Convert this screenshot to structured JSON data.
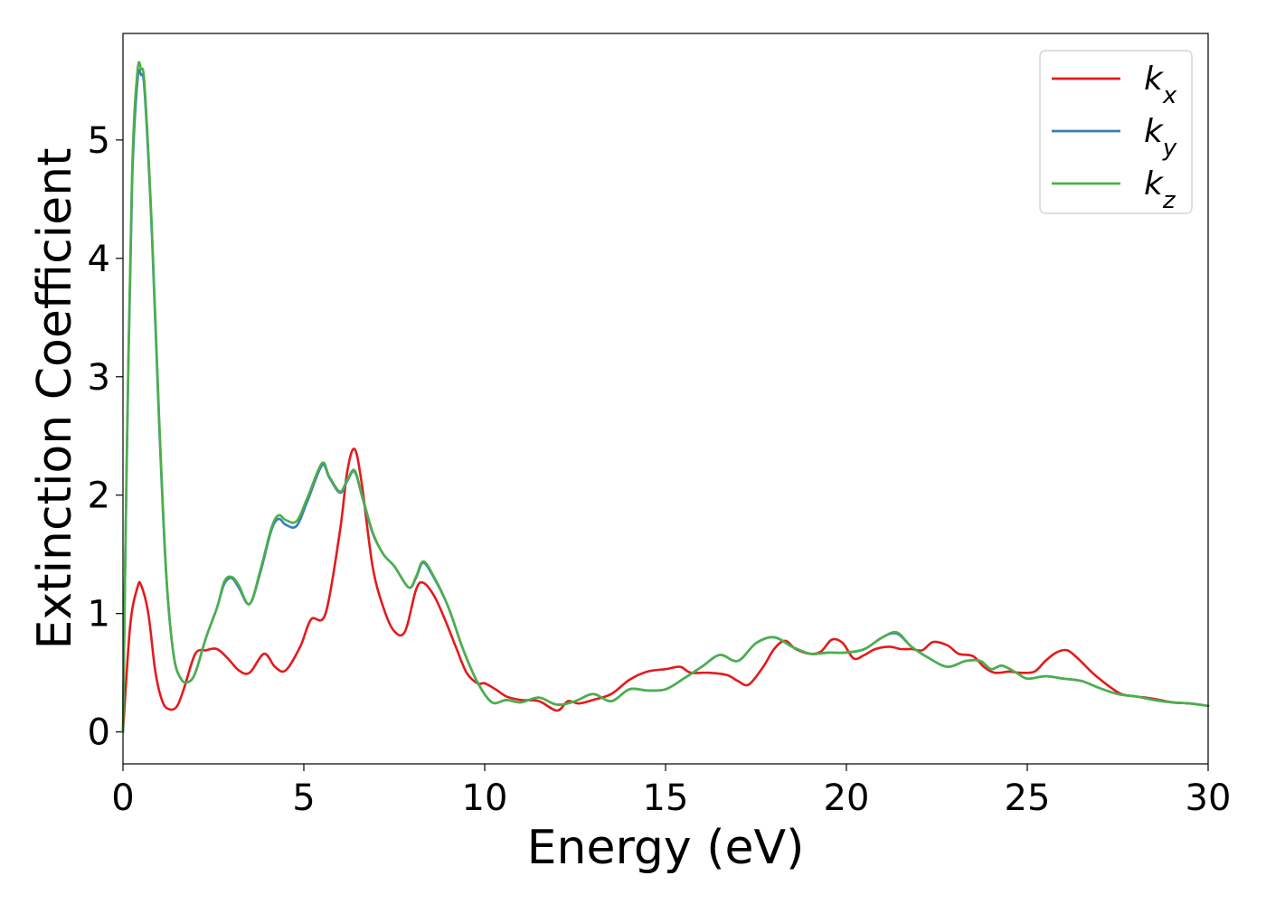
{
  "chart_data": {
    "type": "line",
    "xlabel": "Energy (eV)",
    "ylabel": "Extinction Coefficient",
    "xlim": [
      0,
      30
    ],
    "ylim": [
      -0.27,
      5.9
    ],
    "x_ticks": [
      0,
      5,
      10,
      15,
      20,
      25,
      30
    ],
    "y_ticks": [
      0,
      1,
      2,
      3,
      4,
      5
    ],
    "grid": false,
    "legend_position": "top-right",
    "series": [
      {
        "name": "k",
        "subscript": "x",
        "color": "#e41a1c",
        "x": [
          0,
          0.2,
          0.4,
          0.5,
          0.7,
          0.9,
          1.1,
          1.3,
          1.5,
          1.7,
          2.0,
          2.3,
          2.6,
          2.9,
          3.2,
          3.5,
          3.9,
          4.2,
          4.5,
          4.9,
          5.2,
          5.6,
          6.0,
          6.2,
          6.4,
          6.6,
          6.9,
          7.2,
          7.5,
          7.8,
          8.1,
          8.3,
          8.6,
          8.9,
          9.2,
          9.5,
          9.8,
          10.0,
          10.3,
          10.6,
          11.0,
          11.5,
          12.0,
          12.3,
          12.6,
          13.0,
          13.5,
          14.0,
          14.5,
          15.0,
          15.4,
          15.7,
          16.2,
          16.7,
          17.0,
          17.3,
          17.7,
          18.0,
          18.3,
          18.6,
          19.0,
          19.3,
          19.6,
          19.9,
          20.2,
          20.5,
          20.8,
          21.2,
          21.5,
          21.8,
          22.1,
          22.4,
          22.8,
          23.1,
          23.5,
          23.8,
          24.1,
          24.5,
          24.8,
          25.2,
          25.5,
          25.8,
          26.1,
          26.4,
          26.8,
          27.2,
          27.6,
          28.0,
          28.5,
          29.0,
          29.5,
          30.0
        ],
        "y": [
          0.0,
          0.9,
          1.22,
          1.24,
          1.0,
          0.5,
          0.25,
          0.19,
          0.22,
          0.38,
          0.66,
          0.69,
          0.7,
          0.62,
          0.52,
          0.5,
          0.66,
          0.55,
          0.52,
          0.72,
          0.95,
          1.0,
          1.7,
          2.2,
          2.39,
          2.1,
          1.4,
          1.05,
          0.85,
          0.85,
          1.2,
          1.26,
          1.15,
          0.95,
          0.72,
          0.5,
          0.41,
          0.41,
          0.36,
          0.3,
          0.27,
          0.26,
          0.18,
          0.26,
          0.24,
          0.27,
          0.32,
          0.44,
          0.51,
          0.53,
          0.55,
          0.5,
          0.5,
          0.48,
          0.43,
          0.4,
          0.55,
          0.7,
          0.77,
          0.7,
          0.66,
          0.68,
          0.78,
          0.75,
          0.62,
          0.65,
          0.7,
          0.72,
          0.7,
          0.7,
          0.69,
          0.76,
          0.73,
          0.66,
          0.64,
          0.55,
          0.5,
          0.51,
          0.5,
          0.51,
          0.6,
          0.67,
          0.69,
          0.62,
          0.5,
          0.4,
          0.32,
          0.3,
          0.28,
          0.25,
          0.24,
          0.22
        ]
      },
      {
        "name": "k",
        "subscript": "y",
        "color": "#377eb8",
        "x": [
          0,
          0.1,
          0.25,
          0.4,
          0.5,
          0.6,
          0.8,
          1.0,
          1.2,
          1.4,
          1.6,
          1.8,
          2.0,
          2.3,
          2.6,
          2.8,
          3.0,
          3.2,
          3.5,
          3.8,
          4.1,
          4.3,
          4.5,
          4.8,
          5.1,
          5.5,
          5.7,
          6.0,
          6.2,
          6.4,
          6.6,
          6.9,
          7.2,
          7.5,
          7.9,
          8.1,
          8.3,
          8.6,
          9.0,
          9.4,
          9.8,
          10.2,
          10.6,
          11.0,
          11.5,
          12.0,
          12.5,
          13.0,
          13.5,
          14.0,
          14.5,
          15.0,
          15.5,
          16.0,
          16.5,
          17.0,
          17.5,
          18.0,
          18.5,
          19.0,
          19.5,
          20.0,
          20.5,
          21.0,
          21.4,
          21.8,
          22.3,
          22.8,
          23.3,
          23.7,
          24.0,
          24.3,
          24.7,
          25.0,
          25.5,
          26.0,
          26.5,
          27.0,
          27.5,
          28.0,
          28.5,
          29.0,
          29.5,
          30.0
        ],
        "y": [
          0.0,
          2.2,
          4.6,
          5.5,
          5.55,
          5.4,
          4.2,
          2.6,
          1.3,
          0.65,
          0.45,
          0.42,
          0.5,
          0.8,
          1.05,
          1.25,
          1.3,
          1.22,
          1.08,
          1.35,
          1.7,
          1.8,
          1.75,
          1.74,
          1.95,
          2.25,
          2.15,
          2.02,
          2.12,
          2.2,
          2.0,
          1.68,
          1.5,
          1.4,
          1.22,
          1.3,
          1.43,
          1.3,
          1.05,
          0.7,
          0.42,
          0.25,
          0.27,
          0.25,
          0.29,
          0.23,
          0.26,
          0.32,
          0.26,
          0.36,
          0.35,
          0.36,
          0.45,
          0.55,
          0.65,
          0.6,
          0.75,
          0.8,
          0.72,
          0.66,
          0.67,
          0.67,
          0.7,
          0.8,
          0.83,
          0.72,
          0.62,
          0.55,
          0.6,
          0.6,
          0.53,
          0.56,
          0.5,
          0.45,
          0.47,
          0.45,
          0.43,
          0.37,
          0.32,
          0.3,
          0.27,
          0.25,
          0.24,
          0.22
        ]
      },
      {
        "name": "k",
        "subscript": "z",
        "color": "#4daf4a",
        "x": [
          0,
          0.1,
          0.25,
          0.4,
          0.5,
          0.6,
          0.8,
          1.0,
          1.2,
          1.4,
          1.6,
          1.8,
          2.0,
          2.3,
          2.6,
          2.8,
          3.0,
          3.2,
          3.5,
          3.8,
          4.1,
          4.3,
          4.5,
          4.8,
          5.1,
          5.5,
          5.7,
          6.0,
          6.2,
          6.4,
          6.6,
          6.9,
          7.2,
          7.5,
          7.9,
          8.1,
          8.3,
          8.6,
          9.0,
          9.4,
          9.8,
          10.2,
          10.6,
          11.0,
          11.5,
          12.0,
          12.5,
          13.0,
          13.5,
          14.0,
          14.5,
          15.0,
          15.5,
          16.0,
          16.5,
          17.0,
          17.5,
          18.0,
          18.5,
          19.0,
          19.5,
          20.0,
          20.5,
          21.0,
          21.4,
          21.8,
          22.3,
          22.8,
          23.3,
          23.7,
          24.0,
          24.3,
          24.7,
          25.0,
          25.5,
          26.0,
          26.5,
          27.0,
          27.5,
          28.0,
          28.5,
          29.0,
          29.5,
          30.0
        ],
        "y": [
          0.0,
          2.25,
          4.7,
          5.58,
          5.6,
          5.45,
          4.25,
          2.65,
          1.32,
          0.65,
          0.45,
          0.42,
          0.5,
          0.8,
          1.05,
          1.27,
          1.31,
          1.24,
          1.08,
          1.37,
          1.72,
          1.83,
          1.79,
          1.78,
          1.98,
          2.27,
          2.16,
          2.03,
          2.13,
          2.21,
          2.01,
          1.69,
          1.5,
          1.4,
          1.22,
          1.31,
          1.44,
          1.31,
          1.05,
          0.7,
          0.42,
          0.25,
          0.27,
          0.25,
          0.29,
          0.23,
          0.26,
          0.32,
          0.26,
          0.36,
          0.35,
          0.36,
          0.45,
          0.55,
          0.65,
          0.6,
          0.75,
          0.8,
          0.72,
          0.66,
          0.67,
          0.67,
          0.7,
          0.8,
          0.84,
          0.72,
          0.62,
          0.55,
          0.6,
          0.6,
          0.53,
          0.56,
          0.5,
          0.45,
          0.47,
          0.45,
          0.43,
          0.37,
          0.32,
          0.3,
          0.27,
          0.25,
          0.24,
          0.22
        ]
      }
    ]
  }
}
